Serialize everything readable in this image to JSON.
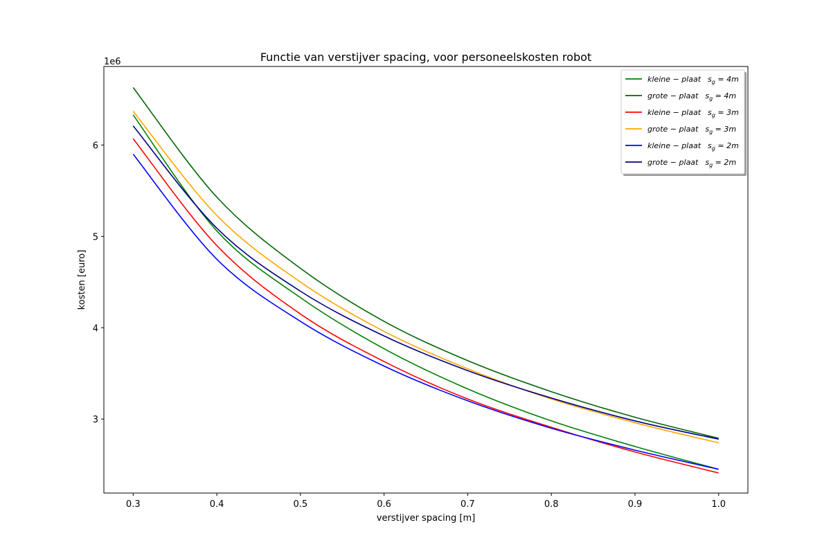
{
  "chart_data": {
    "type": "line",
    "title": "Functie van verstijver spacing, voor personeelskosten robot",
    "xlabel": "verstijver spacing [m]",
    "ylabel": "kosten [euro]",
    "y_offset_label": "1e6",
    "xlim": [
      0.265,
      1.035
    ],
    "ylim": [
      2.19,
      6.86
    ],
    "xticks": [
      0.3,
      0.4,
      0.5,
      0.6,
      0.7,
      0.8,
      0.9,
      1.0
    ],
    "xtick_labels": [
      "0.3",
      "0.4",
      "0.5",
      "0.6",
      "0.7",
      "0.8",
      "0.9",
      "1.0"
    ],
    "yticks": [
      3,
      4,
      5,
      6
    ],
    "ytick_labels": [
      "3",
      "4",
      "5",
      "6"
    ],
    "y_unit_note": "values in millions of euro (×1e6)",
    "grid": false,
    "legend_position": "top-right",
    "x": [
      0.3,
      0.4,
      0.5,
      0.6,
      0.7,
      0.8,
      0.9,
      1.0
    ],
    "series": [
      {
        "name": "kleine - plaat   s_g = 4m",
        "legend_main": "kleine − plaat",
        "legend_sub": "s",
        "legend_subscript": "g",
        "legend_tail": " = 4m",
        "color": "#008000",
        "values": [
          6.33,
          5.06,
          4.33,
          3.77,
          3.33,
          2.98,
          2.7,
          2.45
        ]
      },
      {
        "name": "grote - plaat   s_g = 4m",
        "legend_main": "grote − plaat",
        "legend_sub": "s",
        "legend_subscript": "g",
        "legend_tail": " = 4m",
        "color": "#006400",
        "values": [
          6.63,
          5.43,
          4.65,
          4.07,
          3.64,
          3.3,
          3.02,
          2.79
        ]
      },
      {
        "name": "kleine - plaat   s_g = 3m",
        "legend_main": "kleine − plaat",
        "legend_sub": "s",
        "legend_subscript": "g",
        "legend_tail": " = 3m",
        "color": "#ff0000",
        "values": [
          6.07,
          4.9,
          4.15,
          3.63,
          3.22,
          2.91,
          2.64,
          2.41
        ]
      },
      {
        "name": "grote - plaat   s_g = 3m",
        "legend_main": "grote − plaat",
        "legend_sub": "s",
        "legend_subscript": "g",
        "legend_tail": " = 3m",
        "color": "#ffa500",
        "values": [
          6.37,
          5.23,
          4.5,
          3.96,
          3.55,
          3.22,
          2.96,
          2.74
        ]
      },
      {
        "name": "kleine - plaat   s_g = 2m",
        "legend_main": "kleine − plaat",
        "legend_sub": "s",
        "legend_subscript": "g",
        "legend_tail": " = 2m",
        "color": "#0000ff",
        "values": [
          5.9,
          4.75,
          4.07,
          3.58,
          3.2,
          2.9,
          2.66,
          2.45
        ]
      },
      {
        "name": "grote - plaat   s_g = 2m",
        "legend_main": "grote − plaat",
        "legend_sub": "s",
        "legend_subscript": "g",
        "legend_tail": " = 2m",
        "color": "#000080",
        "values": [
          6.21,
          5.09,
          4.4,
          3.91,
          3.53,
          3.23,
          2.98,
          2.78
        ]
      }
    ]
  }
}
